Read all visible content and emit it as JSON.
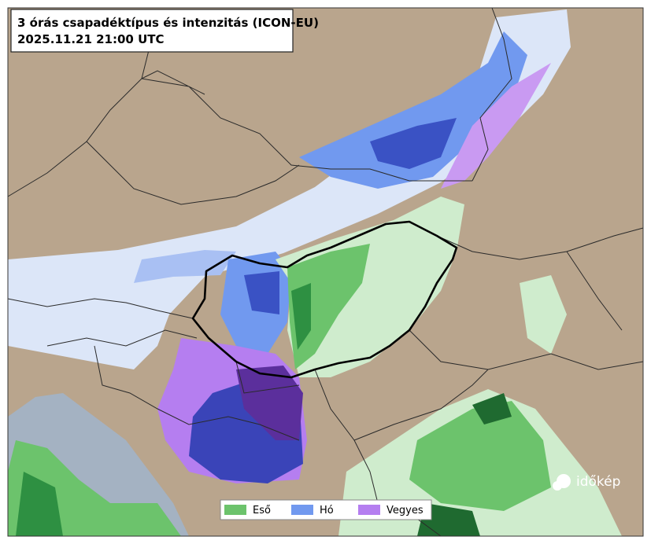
{
  "header": {
    "title": "3 órás csapadéktípus és intenzitás (ICON-EU)",
    "timestamp": "2025.11.21 21:00 UTC"
  },
  "legend": {
    "items": [
      {
        "label": "Eső",
        "color": "#6cc36c"
      },
      {
        "label": "Hó",
        "color": "#7199ef"
      },
      {
        "label": "Vegyes",
        "color": "#b57ef0"
      }
    ]
  },
  "logo": {
    "text": "időkép"
  }
}
